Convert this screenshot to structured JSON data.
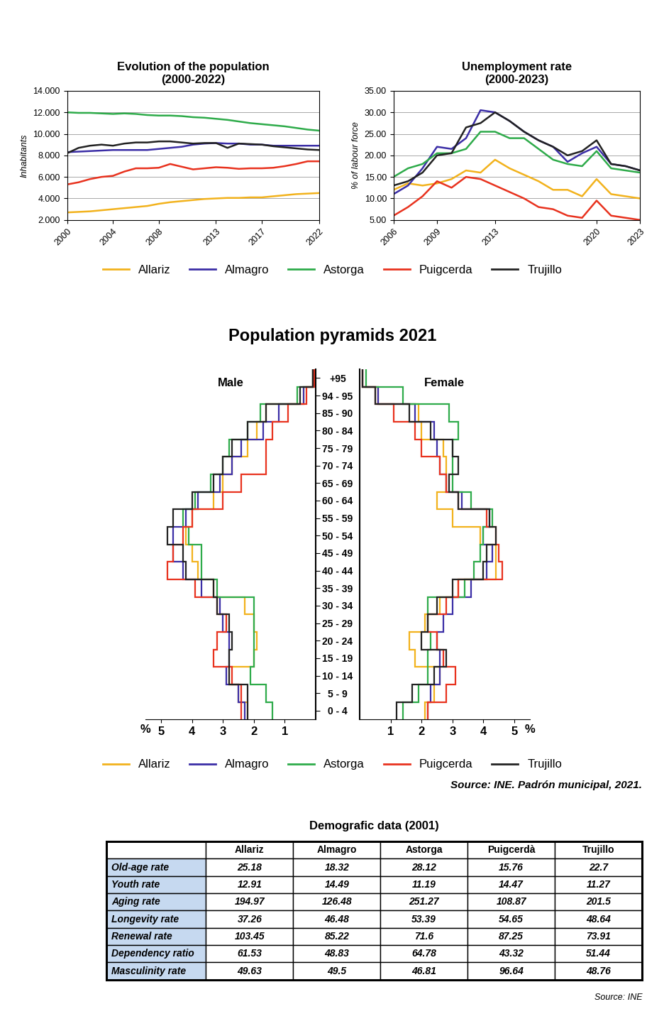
{
  "chart_data": [
    {
      "type": "line",
      "title": "Evolution of the population\n(2000-2022)",
      "y_label": "Inhabitants",
      "x": [
        2000,
        2001,
        2002,
        2003,
        2004,
        2005,
        2006,
        2007,
        2008,
        2009,
        2010,
        2011,
        2012,
        2013,
        2014,
        2015,
        2016,
        2017,
        2018,
        2019,
        2020,
        2021,
        2022
      ],
      "xlim": [
        2000,
        2022
      ],
      "xticks": [
        2000,
        2004,
        2008,
        2013,
        2017,
        2022
      ],
      "ylim": [
        2000,
        14000
      ],
      "yticks": [
        {
          "value": 2000,
          "label": "2.000"
        },
        {
          "value": 4000,
          "label": "4.000"
        },
        {
          "value": 6000,
          "label": "6.000"
        },
        {
          "value": 8000,
          "label": "8.000"
        },
        {
          "value": 10000,
          "label": "10.000"
        },
        {
          "value": 12000,
          "label": "12.000"
        },
        {
          "value": 14000,
          "label": "14.000"
        }
      ],
      "grid": true,
      "legend": "upper center",
      "series": [
        {
          "name": "Allariz",
          "color": "#f2b21c",
          "values": [
            2700,
            2750,
            2800,
            2900,
            3000,
            3100,
            3200,
            3300,
            3500,
            3650,
            3750,
            3850,
            3950,
            4000,
            4050,
            4050,
            4100,
            4100,
            4200,
            4300,
            4400,
            4450,
            4500
          ]
        },
        {
          "name": "Almagro",
          "color": "#3b2ea6",
          "values": [
            8300,
            8350,
            8400,
            8450,
            8500,
            8500,
            8500,
            8500,
            8600,
            8700,
            8800,
            9000,
            9100,
            9150,
            9100,
            9100,
            9000,
            9000,
            8900,
            8900,
            8900,
            8900,
            8900
          ]
        },
        {
          "name": "Astorga",
          "color": "#2eab4a",
          "values": [
            12000,
            11950,
            11950,
            11900,
            11850,
            11900,
            11850,
            11750,
            11700,
            11700,
            11650,
            11550,
            11500,
            11400,
            11300,
            11150,
            11000,
            10900,
            10800,
            10700,
            10550,
            10400,
            10300
          ]
        },
        {
          "name": "Puigcerda",
          "color": "#e8321e",
          "values": [
            5300,
            5500,
            5800,
            6000,
            6100,
            6500,
            6800,
            6800,
            6850,
            7200,
            6950,
            6700,
            6800,
            6900,
            6850,
            6750,
            6800,
            6800,
            6850,
            7000,
            7200,
            7450,
            7450
          ]
        },
        {
          "name": "Trujillo",
          "color": "#222222",
          "values": [
            8200,
            8700,
            8900,
            9000,
            8900,
            9100,
            9200,
            9200,
            9300,
            9300,
            9200,
            9100,
            9150,
            9150,
            8700,
            9100,
            9050,
            9000,
            8850,
            8750,
            8650,
            8550,
            8500
          ]
        }
      ]
    },
    {
      "type": "line",
      "title": "Unemployment rate\n(2000-2023)",
      "y_label": "% of labour force",
      "x": [
        2006,
        2007,
        2008,
        2009,
        2010,
        2011,
        2012,
        2013,
        2014,
        2015,
        2016,
        2017,
        2018,
        2019,
        2020,
        2021,
        2022,
        2023
      ],
      "xlim": [
        2006,
        2023
      ],
      "xticks": [
        2006,
        2009,
        2013,
        2020,
        2023
      ],
      "ylim": [
        5,
        35
      ],
      "yticks": [
        {
          "value": 5,
          "label": "5.00"
        },
        {
          "value": 10,
          "label": "10.00"
        },
        {
          "value": 15,
          "label": "15.00"
        },
        {
          "value": 20,
          "label": "20.00"
        },
        {
          "value": 25,
          "label": "25.00"
        },
        {
          "value": 30,
          "label": "30.00"
        },
        {
          "value": 35,
          "label": "35.00"
        }
      ],
      "grid": true,
      "series": [
        {
          "name": "Allariz",
          "color": "#f2b21c",
          "values": [
            12.0,
            13.5,
            13.0,
            13.5,
            14.5,
            16.5,
            16.0,
            19.0,
            17.0,
            15.5,
            14.0,
            12.0,
            12.0,
            10.5,
            14.5,
            11.0,
            10.5,
            10.0
          ]
        },
        {
          "name": "Almagro",
          "color": "#3b2ea6",
          "values": [
            11,
            13,
            17,
            22,
            21.5,
            24,
            30.5,
            30,
            28,
            25.5,
            23.5,
            22,
            18.5,
            20.5,
            22,
            18,
            17.5,
            16.5
          ]
        },
        {
          "name": "Astorga",
          "color": "#2eab4a",
          "values": [
            15,
            17,
            18,
            20.5,
            20.5,
            21.5,
            25.5,
            25.5,
            24,
            24,
            21.5,
            19,
            18,
            17.5,
            21,
            17,
            16.5,
            16
          ]
        },
        {
          "name": "Puigcerda",
          "color": "#e8321e",
          "values": [
            6,
            8,
            10.5,
            14,
            12.5,
            15,
            14.5,
            13,
            11.5,
            10,
            8,
            7.5,
            6,
            5.5,
            9.5,
            6,
            5.5,
            5
          ]
        },
        {
          "name": "Trujillo",
          "color": "#222222",
          "values": [
            13,
            14,
            16,
            20,
            20.5,
            26.5,
            27.5,
            30,
            28,
            25.5,
            23.5,
            22,
            20,
            21,
            23.5,
            18,
            17.5,
            16.5
          ]
        }
      ]
    },
    {
      "type": "step",
      "title": "Male",
      "annotations": [
        "%"
      ],
      "tick_labels": "x",
      "categories": [
        "0 - 4",
        "5 - 9",
        "10 - 14",
        "15 - 19",
        "20 - 24",
        "25 - 29",
        "30 - 34",
        "35 - 39",
        "40 - 44",
        "45 - 49",
        "50 - 54",
        "55 - 59",
        "60 - 64",
        "65 - 69",
        "70 - 74",
        "75 - 79",
        "80 - 84",
        "85 - 90",
        "94 - 95",
        "+95"
      ],
      "xlim": [
        5.5,
        0
      ],
      "xticks": [
        5,
        4,
        3,
        2,
        1
      ],
      "legend": "upper center",
      "series": [
        {
          "name": "Allariz",
          "color": "#f2b21c",
          "values": [
            2.2,
            2.5,
            2.8,
            2.0,
            1.9,
            2.0,
            2.3,
            3.3,
            3.8,
            4.0,
            4.2,
            4.0,
            3.3,
            3.0,
            2.7,
            2.2,
            1.9,
            1.6,
            0.4,
            0.1
          ]
        },
        {
          "name": "Almagro",
          "color": "#3b2ea6",
          "values": [
            2.3,
            2.5,
            2.9,
            2.8,
            2.8,
            3.0,
            3.1,
            3.7,
            4.3,
            4.6,
            4.6,
            4.2,
            3.8,
            3.1,
            2.7,
            2.4,
            1.7,
            1.2,
            0.4,
            0.1
          ]
        },
        {
          "name": "Astorga",
          "color": "#2eab4a",
          "values": [
            1.4,
            1.6,
            2.1,
            2.0,
            2.0,
            2.0,
            2.0,
            3.2,
            3.7,
            3.7,
            4.1,
            4.3,
            3.9,
            3.4,
            3.0,
            2.8,
            2.2,
            1.8,
            0.6,
            0.1
          ]
        },
        {
          "name": "Puigcerda",
          "color": "#e8321e",
          "values": [
            2.4,
            2.4,
            2.7,
            3.3,
            3.2,
            2.9,
            3.2,
            3.9,
            4.8,
            4.6,
            4.3,
            4.0,
            3.0,
            2.4,
            1.6,
            1.6,
            1.4,
            0.9,
            0.3,
            0.05
          ]
        },
        {
          "name": "Trujillo",
          "color": "#222222",
          "values": [
            2.2,
            2.2,
            2.8,
            2.8,
            2.7,
            2.8,
            3.2,
            3.3,
            4.2,
            4.3,
            4.8,
            4.6,
            4.0,
            3.3,
            3.0,
            2.7,
            2.2,
            1.6,
            0.5,
            0.1
          ]
        }
      ]
    },
    {
      "type": "step",
      "title": "Female",
      "annotations": [
        "%"
      ],
      "categories": [
        "0 - 4",
        "5 - 9",
        "10 - 14",
        "15 - 19",
        "20 - 24",
        "25 - 29",
        "30 - 34",
        "35 - 39",
        "40 - 44",
        "45 - 49",
        "50 - 54",
        "55 - 59",
        "60 - 64",
        "65 - 69",
        "70 - 74",
        "75 - 79",
        "80 - 84",
        "85 - 90",
        "94 - 95",
        "+95"
      ],
      "xlim": [
        0,
        5.5
      ],
      "xticks": [
        1,
        2,
        3,
        4,
        5
      ],
      "series": [
        {
          "name": "Allariz",
          "color": "#f2b21c",
          "values": [
            2.1,
            2.4,
            2.6,
            1.8,
            1.6,
            2.1,
            2.6,
            3.2,
            4.4,
            4.4,
            3.9,
            3.0,
            2.5,
            2.8,
            2.8,
            2.7,
            2.0,
            1.9,
            0.6,
            0.1
          ]
        },
        {
          "name": "Almagro",
          "color": "#3b2ea6",
          "values": [
            2.2,
            2.3,
            2.6,
            2.6,
            2.5,
            2.7,
            3.0,
            3.6,
            4.1,
            4.3,
            4.0,
            4.2,
            3.3,
            2.8,
            2.6,
            2.5,
            2.4,
            1.8,
            0.6,
            0.1
          ]
        },
        {
          "name": "Astorga",
          "color": "#2eab4a",
          "values": [
            1.4,
            1.9,
            2.2,
            2.2,
            2.3,
            2.2,
            2.2,
            3.4,
            3.7,
            3.9,
            4.0,
            4.3,
            3.6,
            3.0,
            3.0,
            3.0,
            3.2,
            2.9,
            1.4,
            0.2
          ]
        },
        {
          "name": "Puigcerda",
          "color": "#e8321e",
          "values": [
            2.2,
            2.8,
            3.1,
            2.7,
            2.5,
            2.2,
            2.8,
            3.2,
            4.6,
            4.5,
            4.4,
            4.1,
            3.2,
            2.8,
            2.6,
            2.0,
            1.8,
            1.1,
            0.5,
            0.1
          ]
        },
        {
          "name": "Trujillo",
          "color": "#222222",
          "values": [
            1.2,
            1.7,
            2.4,
            2.8,
            2.0,
            2.2,
            2.5,
            3.0,
            4.0,
            4.1,
            4.4,
            4.2,
            3.2,
            2.9,
            3.2,
            3.0,
            2.3,
            1.6,
            0.5,
            0.1
          ]
        }
      ]
    }
  ],
  "pyramid_header": {
    "title": "Population pyramids 2021",
    "source": "Source: INE. Padrón municipal, 2021."
  },
  "table": {
    "title": "Demografic data (2001)",
    "source": "Source: INE",
    "columns": [
      "Allariz",
      "Almagro",
      "Astorga",
      "Puigcerdà",
      "Trujillo"
    ],
    "rows": [
      {
        "label": "Old-age rate",
        "values": [
          25.18,
          18.32,
          28.12,
          15.76,
          22.7
        ]
      },
      {
        "label": "Youth rate",
        "values": [
          12.91,
          14.49,
          11.19,
          14.47,
          11.27
        ]
      },
      {
        "label": "Aging rate",
        "values": [
          194.97,
          126.48,
          251.27,
          108.87,
          201.5
        ]
      },
      {
        "label": "Longevity rate",
        "values": [
          37.26,
          46.48,
          53.39,
          54.65,
          48.64
        ]
      },
      {
        "label": "Renewal rate",
        "values": [
          103.45,
          85.22,
          71.6,
          87.25,
          73.91
        ]
      },
      {
        "label": "Dependency ratio",
        "values": [
          61.53,
          48.83,
          64.78,
          43.32,
          51.44
        ]
      },
      {
        "label": "Masculinity rate",
        "values": [
          49.63,
          49.5,
          46.81,
          96.64,
          48.76
        ]
      }
    ]
  }
}
